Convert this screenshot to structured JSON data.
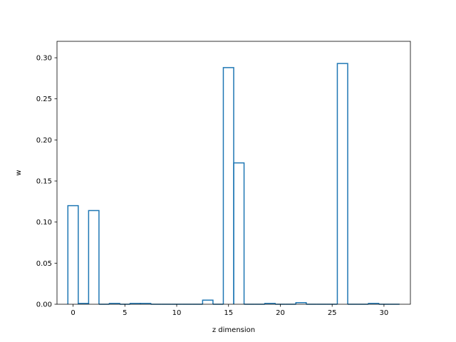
{
  "chart_data": {
    "type": "bar",
    "style": "step-outline",
    "xlabel": "z dimension",
    "ylabel": "w",
    "xlim": [
      -1.55,
      32.55
    ],
    "ylim": [
      0,
      0.32
    ],
    "grid": false,
    "legend": "none",
    "x": [
      0,
      1,
      2,
      3,
      4,
      5,
      6,
      7,
      8,
      9,
      10,
      11,
      12,
      13,
      14,
      15,
      16,
      17,
      18,
      19,
      20,
      21,
      22,
      23,
      24,
      25,
      26,
      27,
      28,
      29,
      30,
      31
    ],
    "values": [
      0.12,
      0.001,
      0.114,
      0.0,
      0.001,
      0.0,
      0.001,
      0.001,
      0.0,
      0.0,
      0.0,
      0.0,
      0.0,
      0.005,
      0.0,
      0.288,
      0.172,
      0.0,
      0.0,
      0.001,
      0.0,
      0.0,
      0.002,
      0.0,
      0.0,
      0.0,
      0.293,
      0.0,
      0.0,
      0.001,
      0.0,
      0.0
    ],
    "xticks": [
      0,
      5,
      10,
      15,
      20,
      25,
      30
    ],
    "xtick_labels": [
      "0",
      "5",
      "10",
      "15",
      "20",
      "25",
      "30"
    ],
    "yticks": [
      0.0,
      0.05,
      0.1,
      0.15,
      0.2,
      0.25,
      0.3
    ],
    "ytick_labels": [
      "0.00",
      "0.05",
      "0.10",
      "0.15",
      "0.20",
      "0.25",
      "0.30"
    ],
    "colors": {
      "line": "#1f77b4",
      "axes": "#000000",
      "background": "#ffffff"
    }
  }
}
